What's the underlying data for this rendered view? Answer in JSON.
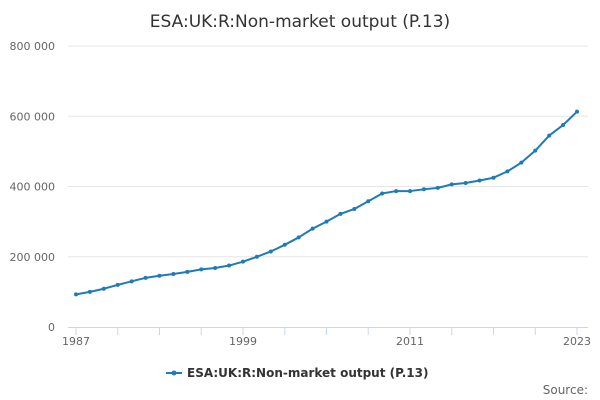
{
  "chart_data": {
    "type": "line",
    "title": "ESA:UK:R:Non-market output (P.13)",
    "xlabel": "",
    "ylabel": "",
    "x": [
      1987,
      1988,
      1989,
      1990,
      1991,
      1992,
      1993,
      1994,
      1995,
      1996,
      1997,
      1998,
      1999,
      2000,
      2001,
      2002,
      2003,
      2004,
      2005,
      2006,
      2007,
      2008,
      2009,
      2010,
      2011,
      2012,
      2013,
      2014,
      2015,
      2016,
      2017,
      2018,
      2019,
      2020,
      2021,
      2022,
      2023
    ],
    "series": [
      {
        "name": "ESA:UK:R:Non-market output (P.13)",
        "color": "#1f7ab8",
        "values": [
          93000,
          100000,
          109000,
          120000,
          130000,
          140000,
          146000,
          151000,
          157000,
          164000,
          168000,
          175000,
          186000,
          200000,
          215000,
          234000,
          255000,
          280000,
          300000,
          322000,
          336000,
          358000,
          380000,
          387000,
          387000,
          392000,
          396000,
          406000,
          410000,
          417000,
          425000,
          443000,
          468000,
          502000,
          545000,
          575000,
          613000
        ]
      }
    ],
    "xlim": [
      1987,
      2023
    ],
    "ylim": [
      0,
      800000
    ],
    "y_ticks": [
      0,
      200000,
      400000,
      600000,
      800000
    ],
    "y_tick_labels": [
      "0",
      "200 000",
      "400 000",
      "600 000",
      "800 000"
    ],
    "x_tick_labels": [
      "1987",
      "1999",
      "2011",
      "2023"
    ],
    "x_tick_values": [
      1987,
      1999,
      2011,
      2023
    ],
    "grid": true,
    "legend_position": "bottom-center",
    "source_label": "Source:"
  }
}
